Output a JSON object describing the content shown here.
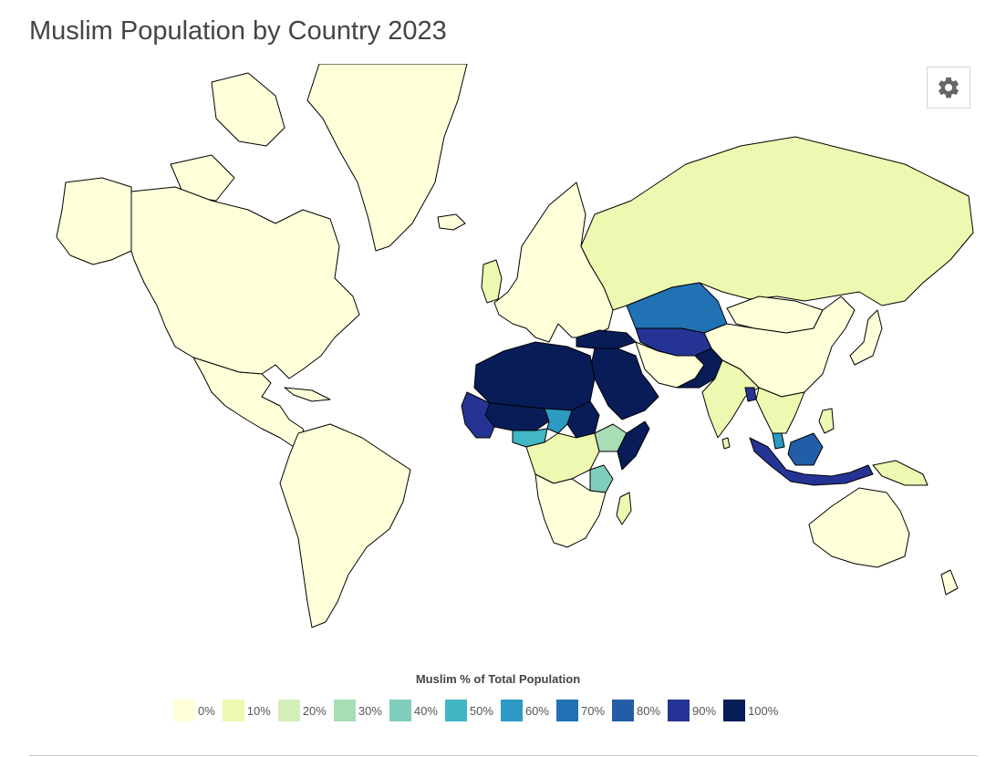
{
  "title": "Muslim Population by Country 2023",
  "settings_icon": "gear-icon",
  "legend": {
    "title": "Muslim % of Total Population",
    "items": [
      {
        "label": "0%",
        "color": "#ffffd9"
      },
      {
        "label": "10%",
        "color": "#edf8b1"
      },
      {
        "label": "20%",
        "color": "#d4eeb8"
      },
      {
        "label": "30%",
        "color": "#a8ddb5"
      },
      {
        "label": "40%",
        "color": "#7fcdbb"
      },
      {
        "label": "50%",
        "color": "#41b6c4"
      },
      {
        "label": "60%",
        "color": "#2c9ac2"
      },
      {
        "label": "70%",
        "color": "#2171b5"
      },
      {
        "label": "80%",
        "color": "#225ea8"
      },
      {
        "label": "90%",
        "color": "#253494"
      },
      {
        "label": "100%",
        "color": "#081d58"
      }
    ]
  },
  "map": {
    "regions": [
      {
        "name": "Greenland",
        "value": 0
      },
      {
        "name": "North America",
        "value": 1
      },
      {
        "name": "Canadian Arctic",
        "value": 1
      },
      {
        "name": "Alaska",
        "value": 0
      },
      {
        "name": "Central America",
        "value": 0
      },
      {
        "name": "Cuba",
        "value": 0
      },
      {
        "name": "South America",
        "value": 0
      },
      {
        "name": "Europe",
        "value": 2
      },
      {
        "name": "United Kingdom",
        "value": 6
      },
      {
        "name": "Iceland",
        "value": 0
      },
      {
        "name": "Russia",
        "value": 10
      },
      {
        "name": "Kazakhstan",
        "value": 70
      },
      {
        "name": "China",
        "value": 2
      },
      {
        "name": "Mongolia",
        "value": 3
      },
      {
        "name": "Turkey",
        "value": 99
      },
      {
        "name": "Middle East",
        "value": 97
      },
      {
        "name": "Iran and Afghanistan",
        "value": 99
      },
      {
        "name": "Central Asia",
        "value": 90
      },
      {
        "name": "Pakistan",
        "value": 96
      },
      {
        "name": "India",
        "value": 14
      },
      {
        "name": "Bangladesh",
        "value": 90
      },
      {
        "name": "Southeast Asia",
        "value": 5
      },
      {
        "name": "Malaysia",
        "value": 63
      },
      {
        "name": "Indonesia",
        "value": 87
      },
      {
        "name": "Borneo",
        "value": 80
      },
      {
        "name": "New Guinea",
        "value": 5
      },
      {
        "name": "Japan",
        "value": 0
      },
      {
        "name": "Australia",
        "value": 3
      },
      {
        "name": "New Zealand",
        "value": 1
      },
      {
        "name": "North Africa",
        "value": 99
      },
      {
        "name": "Sahel",
        "value": 95
      },
      {
        "name": "Sudan",
        "value": 97
      },
      {
        "name": "Chad",
        "value": 55
      },
      {
        "name": "Nigeria",
        "value": 50
      },
      {
        "name": "West Coast Africa",
        "value": 85
      },
      {
        "name": "Ethiopia",
        "value": 34
      },
      {
        "name": "Somalia",
        "value": 99
      },
      {
        "name": "Central Africa",
        "value": 10
      },
      {
        "name": "Tanzania",
        "value": 35
      },
      {
        "name": "Southern Africa",
        "value": 2
      },
      {
        "name": "Madagascar",
        "value": 7
      },
      {
        "name": "Sri Lanka",
        "value": 10
      },
      {
        "name": "Philippines",
        "value": 6
      }
    ]
  }
}
